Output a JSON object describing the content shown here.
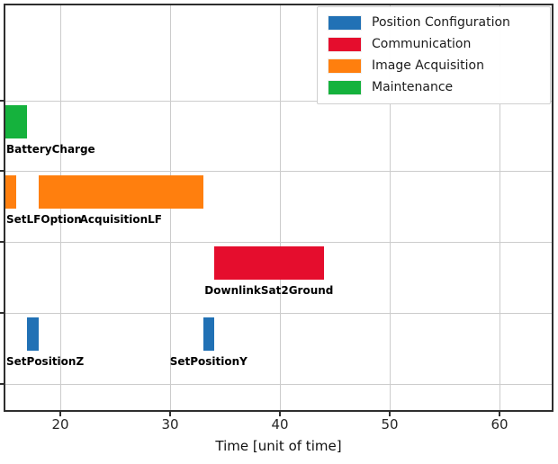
{
  "figure": {
    "background": "#ffffff",
    "border_color": "#2e2e2e",
    "gridline_color": "#cccccc"
  },
  "legend": {
    "position": "upper-right",
    "entries": [
      {
        "label": "Position Configuration",
        "color": "#2171b5"
      },
      {
        "label": "Communication",
        "color": "#e50d2d"
      },
      {
        "label": "Image Acquisition",
        "color": "#ff7f0e"
      },
      {
        "label": "Maintenance",
        "color": "#15b23d"
      }
    ]
  },
  "chart_data": {
    "type": "bar",
    "subtype": "gantt-broken-barh",
    "title": "",
    "xlabel": "Time [unit of time]",
    "ylabel": "",
    "xlim": [
      14.8,
      65
    ],
    "xticks": [
      20,
      30,
      40,
      50,
      60
    ],
    "grid": true,
    "legend_position": "upper right",
    "row_categories_top_to_bottom": [
      "Maintenance",
      "Image Acquisition",
      "Communication",
      "Position Configuration"
    ],
    "tasks": [
      {
        "name": "BatteryCharge",
        "category": "Maintenance",
        "row": 0,
        "start": 15,
        "end": 17
      },
      {
        "name": "SetLFOption",
        "category": "Image Acquisition",
        "row": 1,
        "start": 15,
        "end": 16
      },
      {
        "name": "AcquisitionLF",
        "category": "Image Acquisition",
        "row": 1,
        "start": 18,
        "end": 33
      },
      {
        "name": "DownlinkSat2Ground",
        "category": "Communication",
        "row": 2,
        "start": 34,
        "end": 44
      },
      {
        "name": "SetPositionZ",
        "category": "Position Configuration",
        "row": 3,
        "start": 17,
        "end": 18
      },
      {
        "name": "SetPositionY",
        "category": "Position Configuration",
        "row": 3,
        "start": 33,
        "end": 34
      }
    ]
  }
}
